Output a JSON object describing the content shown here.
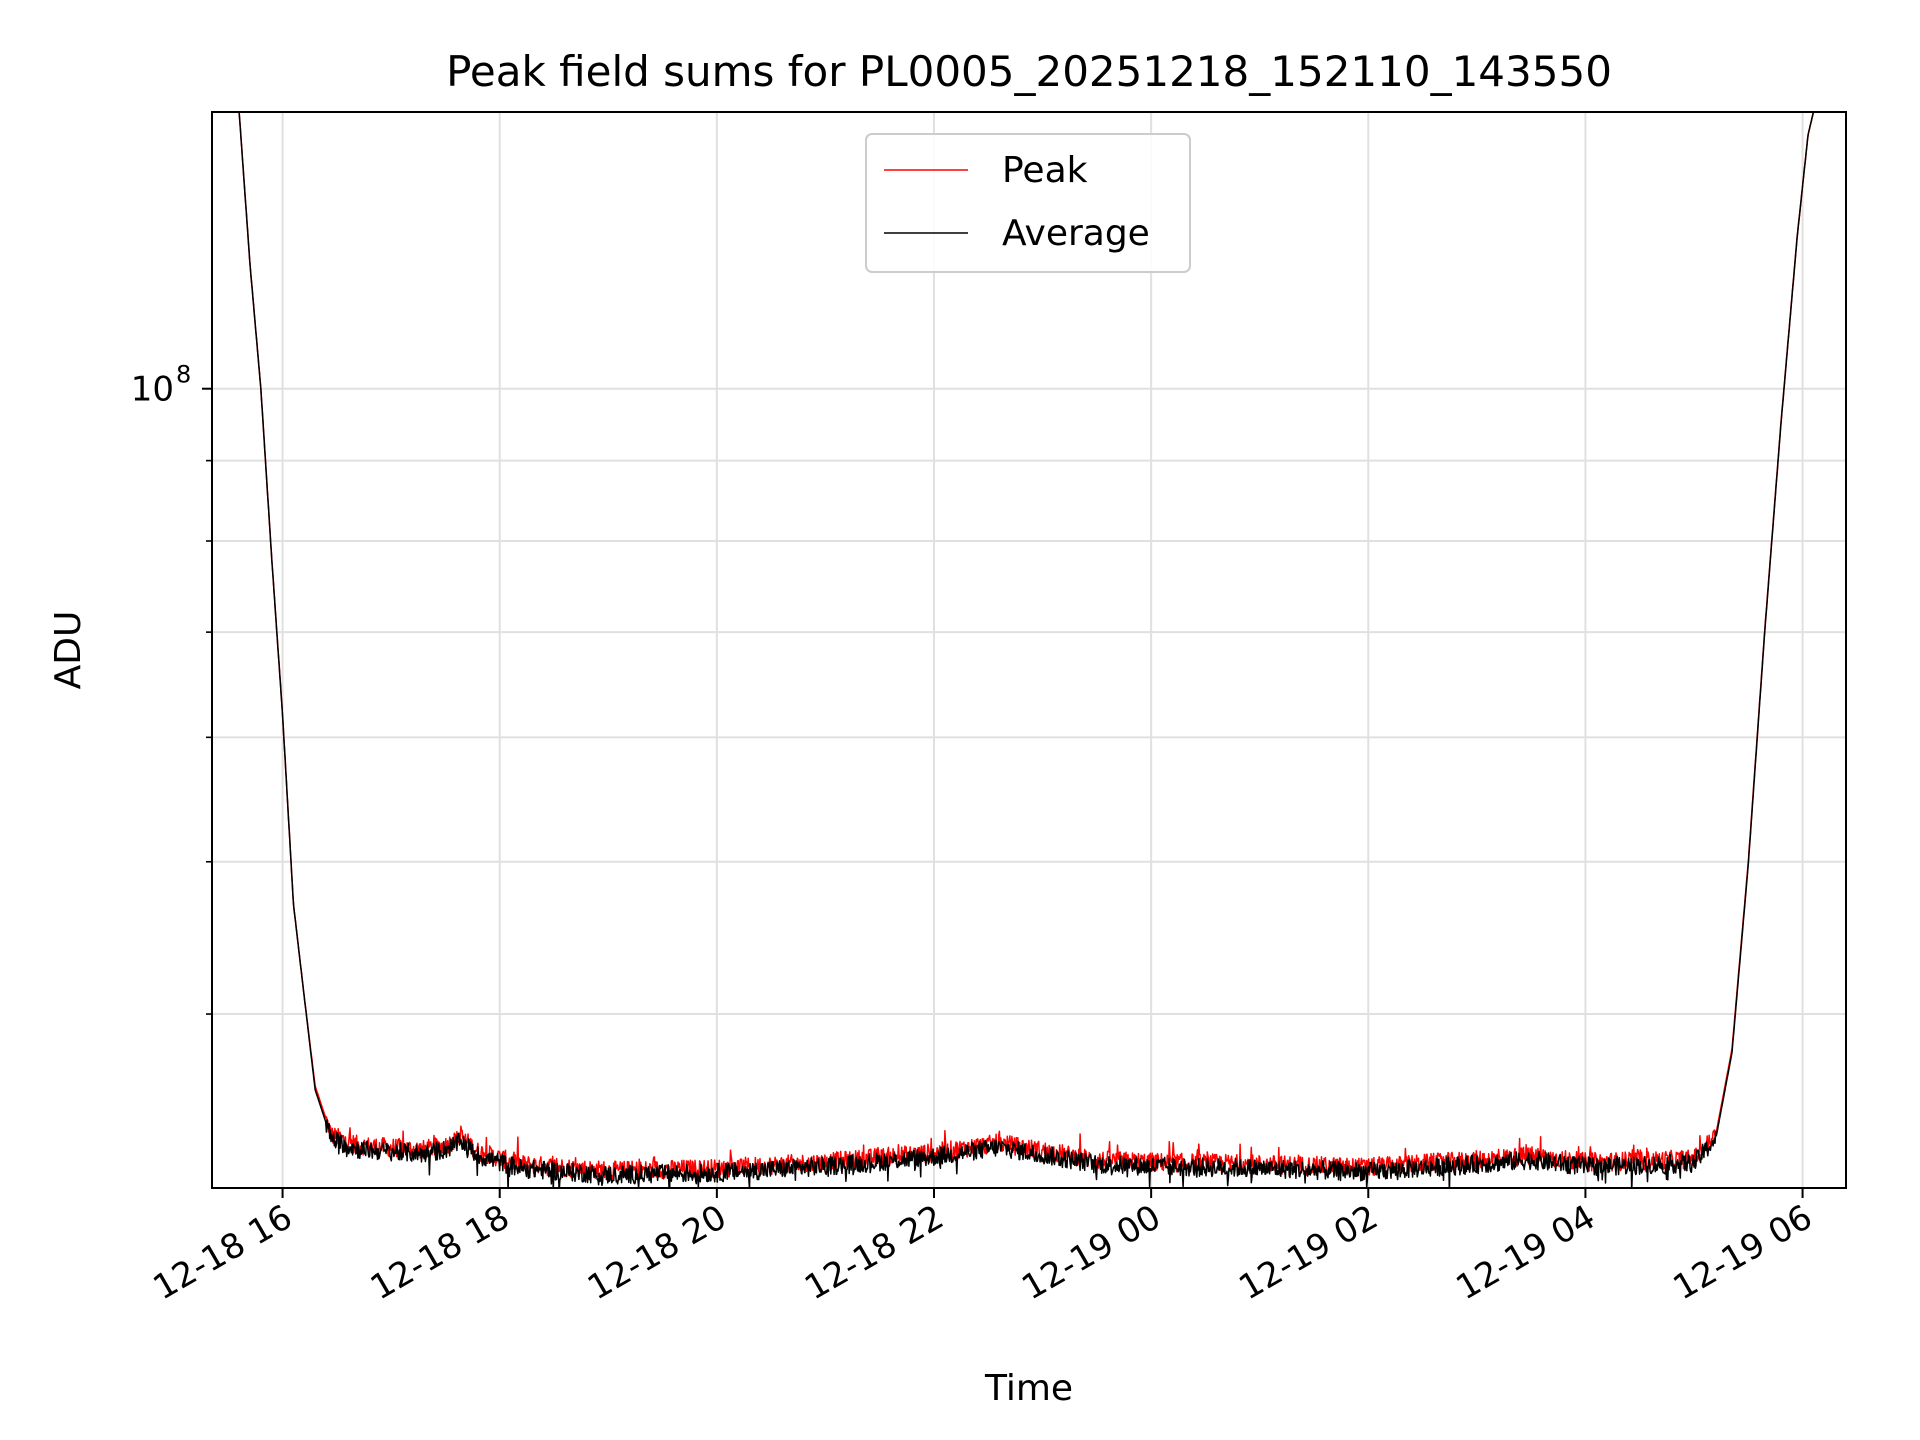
{
  "chart_data": {
    "type": "line",
    "title": "Peak field sums for PL0005_20251218_152110_143550",
    "xlabel": "Time",
    "ylabel": "ADU",
    "y_scale": "log",
    "ylim": [
      31000000,
      150000000
    ],
    "y_major_ticks": [
      {
        "value": 100000000,
        "base": "10",
        "exp": "8"
      }
    ],
    "y_minor_ticks": [
      40000000,
      50000000,
      60000000,
      70000000,
      80000000,
      90000000,
      200000000
    ],
    "xlim_hours": [
      -0.65,
      14.4
    ],
    "x_ticks": [
      {
        "label": "12-18 16",
        "hour": 0
      },
      {
        "label": "12-18 18",
        "hour": 2
      },
      {
        "label": "12-18 20",
        "hour": 4
      },
      {
        "label": "12-18 22",
        "hour": 6
      },
      {
        "label": "12-19 00",
        "hour": 8
      },
      {
        "label": "12-19 02",
        "hour": 10
      },
      {
        "label": "12-19 04",
        "hour": 12
      },
      {
        "label": "12-19 06",
        "hour": 14
      }
    ],
    "grid": true,
    "legend_position": "top-center",
    "legend": [
      "Peak",
      "Average"
    ],
    "series": [
      {
        "name": "Peak",
        "color": "#ff0000",
        "x_hours": [
          -0.4,
          -0.3,
          -0.2,
          -0.1,
          0.0,
          0.1,
          0.2,
          0.3,
          0.45,
          0.7,
          1.0,
          1.3,
          1.5,
          1.65,
          1.8,
          2.2,
          3.0,
          4.0,
          5.0,
          6.0,
          6.6,
          7.0,
          7.5,
          8.0,
          9.0,
          10.0,
          11.0,
          11.5,
          12.0,
          12.5,
          13.0,
          13.2,
          13.35,
          13.5,
          13.65,
          13.8,
          13.95,
          14.05,
          14.1
        ],
        "values": [
          150000000,
          120000000,
          100000000,
          78000000,
          62000000,
          47000000,
          41000000,
          36000000,
          33500000,
          33000000,
          32900000,
          32800000,
          33000000,
          33400000,
          32700000,
          32100000,
          31800000,
          31900000,
          32200000,
          32650000,
          33100000,
          32750000,
          32300000,
          32200000,
          32100000,
          31950000,
          32300000,
          32500000,
          32200000,
          32250000,
          32350000,
          33500000,
          38000000,
          50000000,
          70000000,
          95000000,
          125000000,
          145000000,
          150000000
        ]
      },
      {
        "name": "Average",
        "color": "#000000",
        "x_hours": [
          -0.4,
          -0.3,
          -0.2,
          -0.1,
          0.0,
          0.1,
          0.2,
          0.3,
          0.45,
          0.7,
          1.0,
          1.3,
          1.5,
          1.65,
          1.8,
          2.2,
          3.0,
          4.0,
          5.0,
          6.0,
          6.6,
          7.0,
          7.5,
          8.0,
          9.0,
          10.0,
          11.0,
          11.5,
          12.0,
          12.5,
          13.0,
          13.2,
          13.35,
          13.5,
          13.65,
          13.8,
          13.95,
          14.05,
          14.1
        ],
        "values": [
          150000000,
          120000000,
          100000000,
          78000000,
          62000000,
          47000000,
          41000000,
          35800000,
          33300000,
          32800000,
          32700000,
          32600000,
          32800000,
          33200000,
          32500000,
          31900000,
          31600000,
          31700000,
          32000000,
          32450000,
          32900000,
          32550000,
          32100000,
          32000000,
          31900000,
          31750000,
          32100000,
          32300000,
          32000000,
          32050000,
          32150000,
          33300000,
          37800000,
          49800000,
          69800000,
          94800000,
          124800000,
          145000000,
          150000000
        ]
      }
    ]
  }
}
